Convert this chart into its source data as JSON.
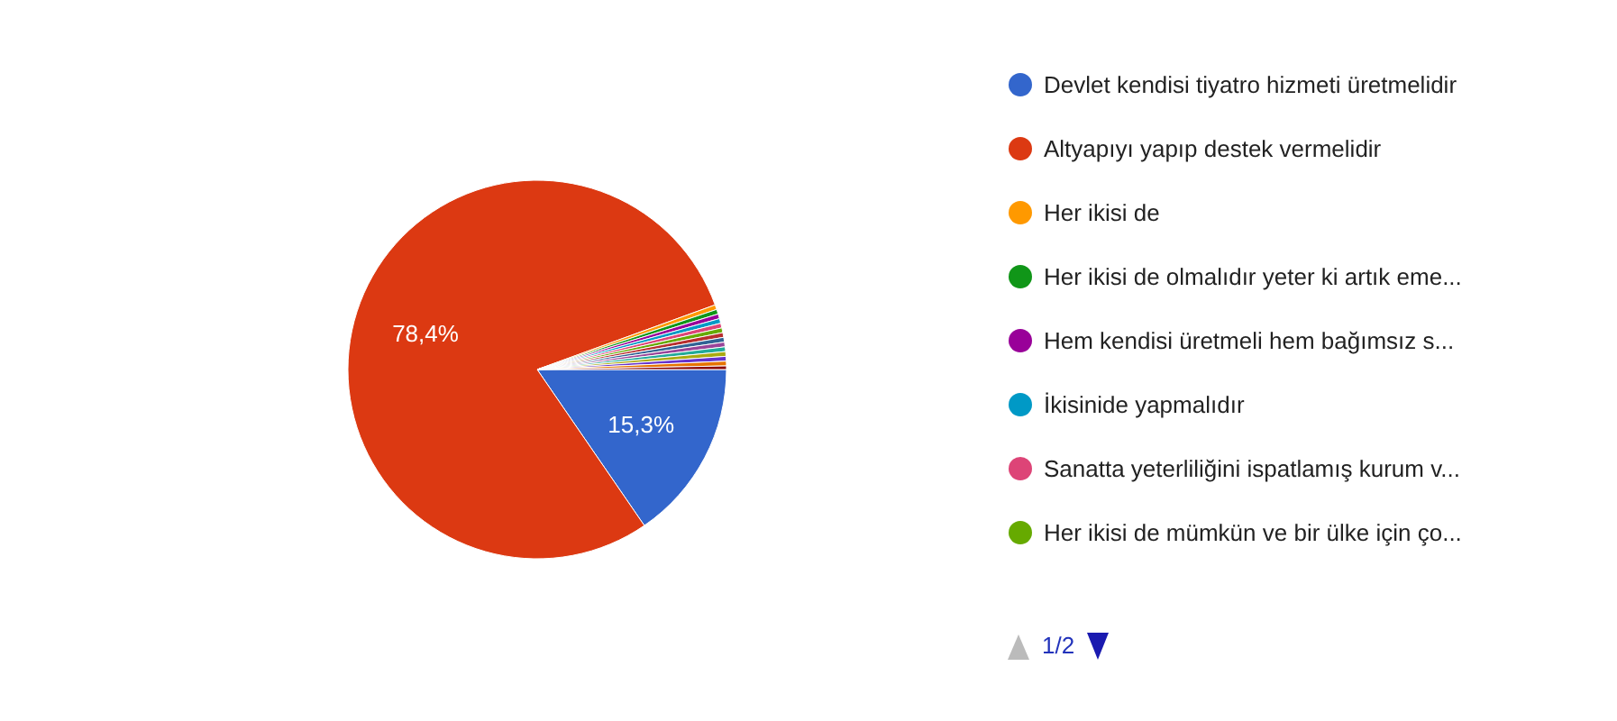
{
  "chart_data": {
    "type": "pie",
    "categories": [
      "Devlet kendisi tiyatro hizmeti üretmelidir",
      "Altyapıyı yapıp destek vermelidir",
      "Her ikisi de",
      "Her ikisi de olmalıdır yeter ki artık eme...",
      "Hem kendisi üretmeli hem bağımsız s...",
      "İkisinide yapmalıdır",
      "Sanatta yeterliliğini ispatlamış kurum v...",
      "Her ikisi de mümkün ve bir ülke için ço...",
      null,
      null,
      null,
      null,
      null,
      null,
      null,
      null
    ],
    "values": [
      15.3,
      78.4,
      0.4,
      0.4,
      0.4,
      0.4,
      0.4,
      0.4,
      0.4,
      0.4,
      0.4,
      0.4,
      0.4,
      0.4,
      0.4,
      0.3
    ],
    "colors": [
      "#3366cc",
      "#dc3912",
      "#ff9900",
      "#109618",
      "#990099",
      "#0099c6",
      "#dd4477",
      "#66aa00",
      "#b82e2e",
      "#316395",
      "#994499",
      "#22aa99",
      "#aaaa11",
      "#6633cc",
      "#e67300",
      "#8b0707"
    ],
    "value_labels": [
      "15,3%",
      "78,4%",
      null,
      null,
      null,
      null,
      null,
      null,
      null,
      null,
      null,
      null,
      null,
      null,
      null,
      null
    ],
    "legend": "right",
    "annotations": [
      "1/2"
    ]
  }
}
